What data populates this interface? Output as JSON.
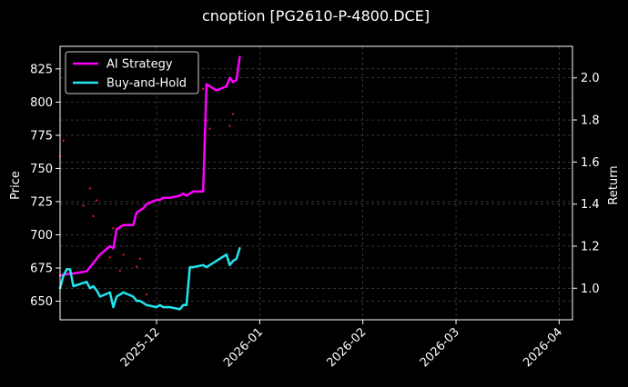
{
  "chart_data": {
    "type": "line",
    "title": "cnoption [PG2610-P-4800.DCE]",
    "ylabel_left": "Price",
    "ylabel_right": "Return",
    "ylim_left": [
      636,
      842
    ],
    "ylim_right": [
      0.85,
      2.15
    ],
    "xlim": [
      "2025-11-02",
      "2026-04-05"
    ],
    "yticks_left": [
      650,
      675,
      700,
      725,
      750,
      775,
      800,
      825
    ],
    "yticks_right": [
      1.0,
      1.2,
      1.4,
      1.6,
      1.8,
      2.0
    ],
    "yticks_right_labels": [
      "1.0",
      "1.2",
      "1.4",
      "1.6",
      "1.8",
      "2.0"
    ],
    "xticks": [
      "2025-12-01",
      "2026-01-01",
      "2026-02-01",
      "2026-03-01",
      "2026-04-01"
    ],
    "xtick_labels": [
      "2025-12",
      "2026-01",
      "2026-02",
      "2026-03",
      "2026-04"
    ],
    "grid": true,
    "legend_position": "top-left",
    "colors": {
      "ai_strategy": "#ff00ff",
      "buy_and_hold": "#22e5ee",
      "price_dots": "#ff1a1a",
      "background": "#000000",
      "grid": "#555555",
      "text": "#ffffff"
    },
    "series": [
      {
        "name": "AI Strategy",
        "axis": "right",
        "x": [
          "2025-11-02",
          "2025-11-05",
          "2025-11-06",
          "2025-11-10",
          "2025-11-11",
          "2025-11-12",
          "2025-11-13",
          "2025-11-14",
          "2025-11-17",
          "2025-11-18",
          "2025-11-19",
          "2025-11-20",
          "2025-11-21",
          "2025-11-24",
          "2025-11-25",
          "2025-11-26",
          "2025-11-27",
          "2025-11-28",
          "2025-12-01",
          "2025-12-02",
          "2025-12-03",
          "2025-12-04",
          "2025-12-05",
          "2025-12-08",
          "2025-12-09",
          "2025-12-10",
          "2025-12-11",
          "2025-12-12",
          "2025-12-15",
          "2025-12-16",
          "2025-12-17",
          "2025-12-18",
          "2025-12-19",
          "2025-12-22",
          "2025-12-23",
          "2025-12-24",
          "2025-12-25",
          "2025-12-26"
        ],
        "y": [
          1.06,
          1.07,
          1.07,
          1.08,
          1.1,
          1.12,
          1.14,
          1.16,
          1.2,
          1.19,
          1.28,
          1.29,
          1.3,
          1.3,
          1.36,
          1.37,
          1.38,
          1.4,
          1.42,
          1.42,
          1.43,
          1.43,
          1.43,
          1.44,
          1.45,
          1.44,
          1.45,
          1.46,
          1.46,
          1.97,
          1.96,
          1.95,
          1.94,
          1.96,
          2.0,
          1.98,
          1.99,
          2.1
        ]
      },
      {
        "name": "Buy-and-Hold",
        "axis": "right",
        "x": [
          "2025-11-02",
          "2025-11-03",
          "2025-11-04",
          "2025-11-05",
          "2025-11-06",
          "2025-11-10",
          "2025-11-11",
          "2025-11-12",
          "2025-11-13",
          "2025-11-14",
          "2025-11-17",
          "2025-11-18",
          "2025-11-19",
          "2025-11-20",
          "2025-11-21",
          "2025-11-24",
          "2025-11-25",
          "2025-11-26",
          "2025-11-27",
          "2025-11-28",
          "2025-12-01",
          "2025-12-02",
          "2025-12-03",
          "2025-12-04",
          "2025-12-05",
          "2025-12-08",
          "2025-12-09",
          "2025-12-10",
          "2025-12-11",
          "2025-12-12",
          "2025-12-15",
          "2025-12-16",
          "2025-12-17",
          "2025-12-18",
          "2025-12-19",
          "2025-12-22",
          "2025-12-23",
          "2025-12-24",
          "2025-12-25",
          "2025-12-26"
        ],
        "y": [
          1.0,
          1.06,
          1.09,
          1.09,
          1.01,
          1.03,
          1.0,
          1.01,
          0.99,
          0.96,
          0.98,
          0.91,
          0.96,
          0.97,
          0.98,
          0.96,
          0.94,
          0.94,
          0.93,
          0.92,
          0.91,
          0.92,
          0.91,
          0.91,
          0.91,
          0.9,
          0.92,
          0.92,
          1.1,
          1.1,
          1.11,
          1.1,
          1.11,
          1.12,
          1.13,
          1.16,
          1.11,
          1.13,
          1.14,
          1.19
        ]
      }
    ],
    "price_points": {
      "name": "Price",
      "axis": "left",
      "x": [
        "2025-11-02",
        "2025-11-03",
        "2025-11-09",
        "2025-11-11",
        "2025-11-12",
        "2025-11-13",
        "2025-11-17",
        "2025-11-18",
        "2025-11-20",
        "2025-11-21",
        "2025-11-25",
        "2025-11-26",
        "2025-11-28",
        "2025-12-15",
        "2025-12-16",
        "2025-12-17",
        "2025-12-23",
        "2025-12-24"
      ],
      "y": [
        759,
        771,
        722,
        735,
        714,
        726,
        683,
        705,
        673,
        685,
        676,
        682,
        655,
        810,
        786,
        780,
        782,
        791
      ]
    }
  }
}
